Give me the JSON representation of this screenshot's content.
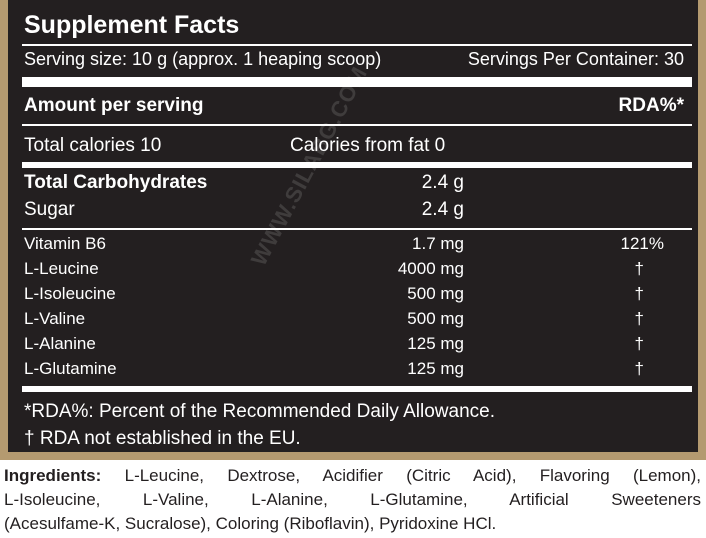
{
  "label": {
    "title": "Supplement Facts",
    "serving_size": "Serving size: 10 g (approx. 1 heaping scoop)",
    "servings_per_container": "Servings Per Container: 30",
    "amount_per_serving": "Amount per serving",
    "rda_header": "RDA%*",
    "total_calories": "Total calories 10",
    "calories_from_fat": "Calories from fat 0",
    "carbs": [
      {
        "name": "Total Carbohydrates",
        "amount": "2.4 g"
      },
      {
        "name": "Sugar",
        "amount": "2.4 g"
      }
    ],
    "nutrients": [
      {
        "name": "Vitamin B6",
        "amount": "1.7 mg",
        "rda": "121%"
      },
      {
        "name": "L-Leucine",
        "amount": "4000 mg",
        "rda": "†"
      },
      {
        "name": "L-Isoleucine",
        "amount": "500 mg",
        "rda": "†"
      },
      {
        "name": "L-Valine",
        "amount": "500 mg",
        "rda": "†"
      },
      {
        "name": "L-Alanine",
        "amount": "125 mg",
        "rda": "†"
      },
      {
        "name": "L-Glutamine",
        "amount": "125 mg",
        "rda": "†"
      }
    ],
    "footnote_rda": "*RDA%: Percent of the Recommended Daily Allowance.",
    "footnote_dagger": "† RDA not established in the EU."
  },
  "ingredients": {
    "label": "Ingredients:",
    "lines": [
      " L-Leucine, Dextrose, Acidifier (Citric Acid), Flavoring (Lemon),",
      "L-Isoleucine, L-Valine, L-Alanine, L-Glutamine, Artificial Sweeteners",
      "(Acesulfame-K, Sucralose), Coloring (Riboflavin), Pyridoxine HCl."
    ]
  },
  "watermark": "WWW.SILABG.COM",
  "colors": {
    "panel_background": "#231f20",
    "frame": "#b49a70",
    "text_light": "#ffffff",
    "text_dark": "#231f20"
  }
}
